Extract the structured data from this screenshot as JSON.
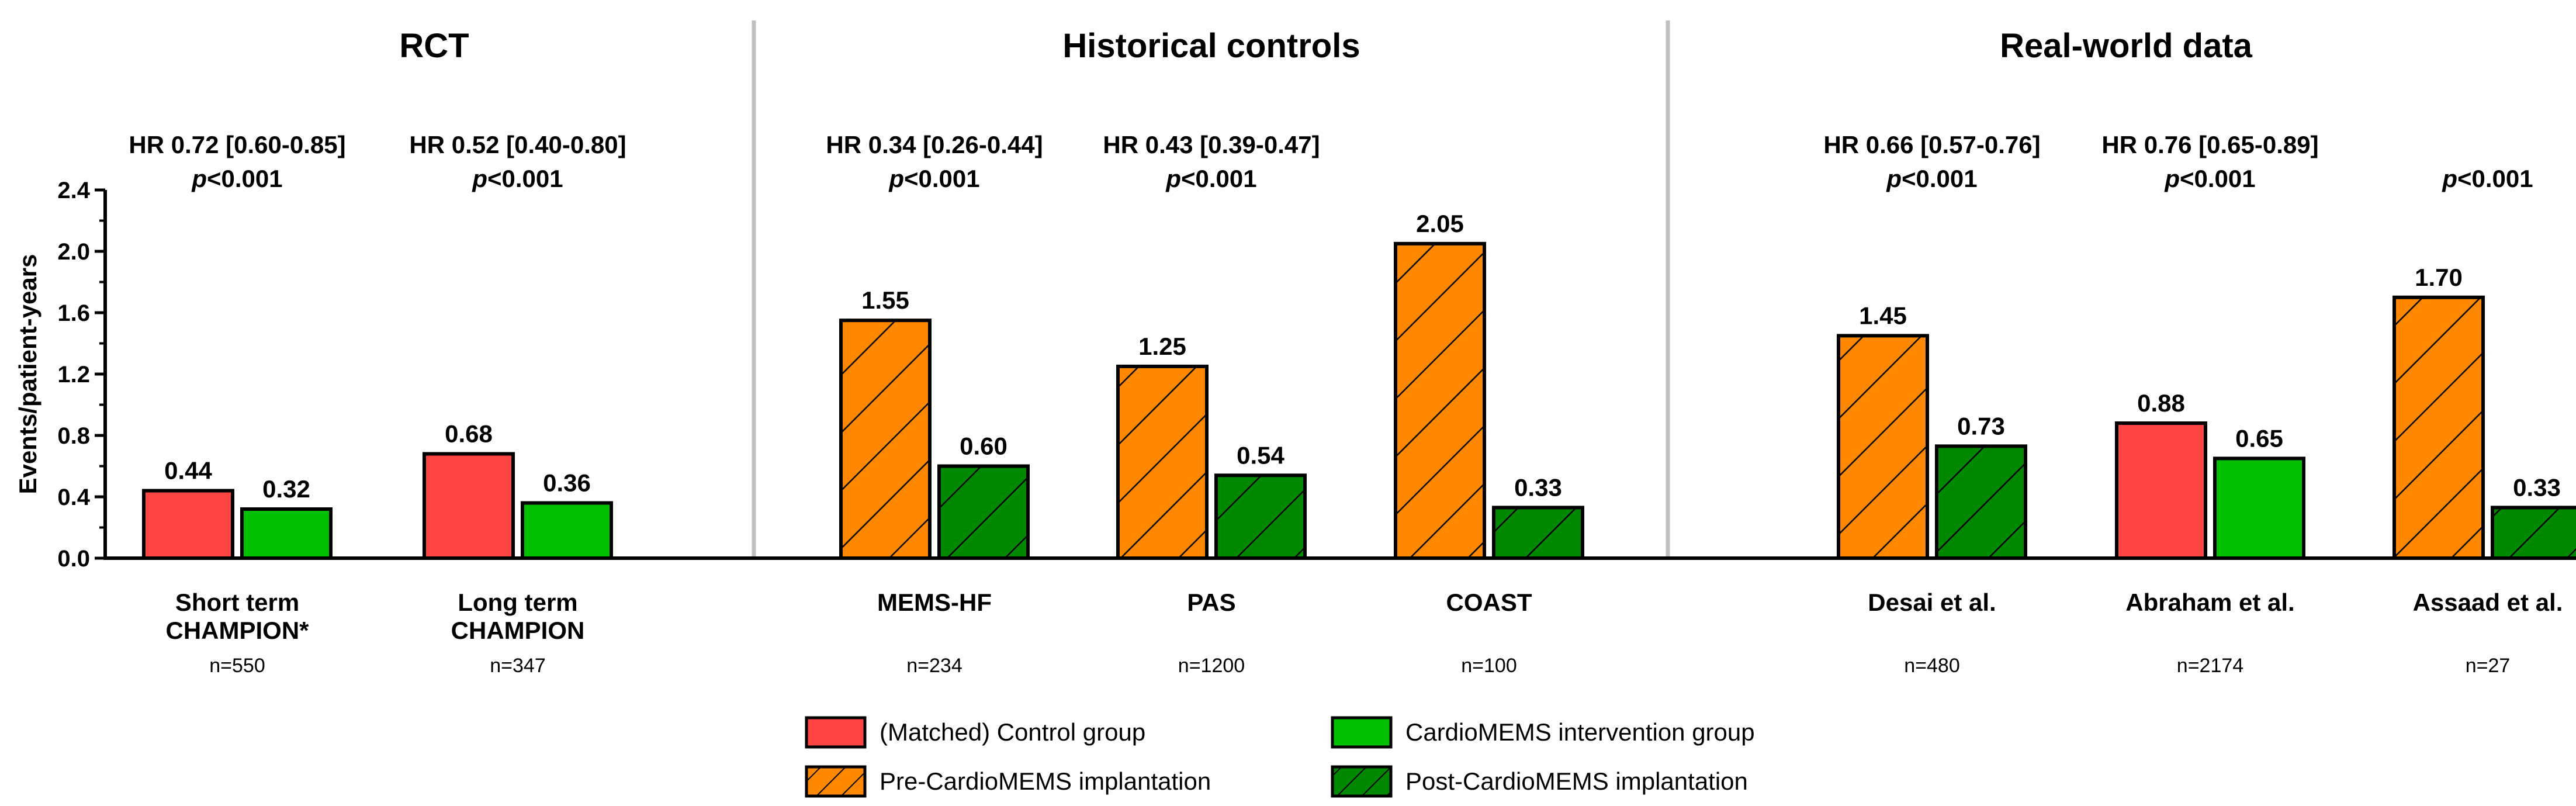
{
  "chart_data": {
    "type": "bar",
    "ylabel": "Events/patient-years",
    "ylim": [
      0,
      2.4
    ],
    "yticks": [
      "0.0",
      "0.4",
      "0.8",
      "1.2",
      "1.6",
      "2.0",
      "2.4"
    ],
    "colors": {
      "control": "#ff4444",
      "intervention": "#00c000",
      "pre": "#ff8800",
      "post": "#008800"
    },
    "legend": [
      {
        "label": "(Matched) Control group",
        "key": "control",
        "hatch": false
      },
      {
        "label": "CardioMEMS intervention group",
        "key": "intervention",
        "hatch": false
      },
      {
        "label": "Pre-CardioMEMS implantation",
        "key": "pre",
        "hatch": true
      },
      {
        "label": "Post-CardioMEMS implantation",
        "key": "post",
        "hatch": true
      }
    ],
    "sections": [
      {
        "title": "RCT",
        "studies": [
          {
            "name_lines": [
              "Short term",
              "CHAMPION*"
            ],
            "n": "n=550",
            "hr": "HR 0.72 [0.60-0.85]",
            "p": "<0.001",
            "bars": [
              {
                "key": "control",
                "value": 0.44,
                "label": "0.44"
              },
              {
                "key": "intervention",
                "value": 0.32,
                "label": "0.32"
              }
            ]
          },
          {
            "name_lines": [
              "Long term",
              "CHAMPION"
            ],
            "n": "n=347",
            "hr": "HR 0.52 [0.40-0.80]",
            "p": "<0.001",
            "bars": [
              {
                "key": "control",
                "value": 0.68,
                "label": "0.68"
              },
              {
                "key": "intervention",
                "value": 0.36,
                "label": "0.36"
              }
            ]
          }
        ]
      },
      {
        "title": "Historical controls",
        "studies": [
          {
            "name_lines": [
              "MEMS-HF"
            ],
            "n": "n=234",
            "hr": "HR 0.34 [0.26-0.44]",
            "p": "<0.001",
            "bars": [
              {
                "key": "pre",
                "value": 1.55,
                "label": "1.55"
              },
              {
                "key": "post",
                "value": 0.6,
                "label": "0.60"
              }
            ]
          },
          {
            "name_lines": [
              "PAS"
            ],
            "n": "n=1200",
            "hr": "HR 0.43 [0.39-0.47]",
            "p": "<0.001",
            "bars": [
              {
                "key": "pre",
                "value": 1.25,
                "label": "1.25"
              },
              {
                "key": "post",
                "value": 0.54,
                "label": "0.54"
              }
            ]
          },
          {
            "name_lines": [
              "COAST"
            ],
            "n": "n=100",
            "hr": "",
            "p": "",
            "bars": [
              {
                "key": "pre",
                "value": 2.05,
                "label": "2.05"
              },
              {
                "key": "post",
                "value": 0.33,
                "label": "0.33"
              }
            ]
          }
        ]
      },
      {
        "title": "Real-world data",
        "studies": [
          {
            "name_lines": [
              "Desai et al."
            ],
            "n": "n=480",
            "hr": "HR 0.66 [0.57-0.76]",
            "p": "<0.001",
            "bars": [
              {
                "key": "pre",
                "value": 1.45,
                "label": "1.45"
              },
              {
                "key": "post",
                "value": 0.73,
                "label": "0.73"
              }
            ]
          },
          {
            "name_lines": [
              "Abraham et al."
            ],
            "n": "n=2174",
            "hr": "HR 0.76 [0.65-0.89]",
            "p": "<0.001",
            "bars": [
              {
                "key": "control",
                "value": 0.88,
                "label": "0.88"
              },
              {
                "key": "intervention",
                "value": 0.65,
                "label": "0.65"
              }
            ]
          },
          {
            "name_lines": [
              "Assaad et al."
            ],
            "n": "n=27",
            "hr": "",
            "p": "<0.001",
            "bars": [
              {
                "key": "pre",
                "value": 1.7,
                "label": "1.70"
              },
              {
                "key": "post",
                "value": 0.33,
                "label": "0.33"
              }
            ]
          }
        ]
      }
    ]
  }
}
